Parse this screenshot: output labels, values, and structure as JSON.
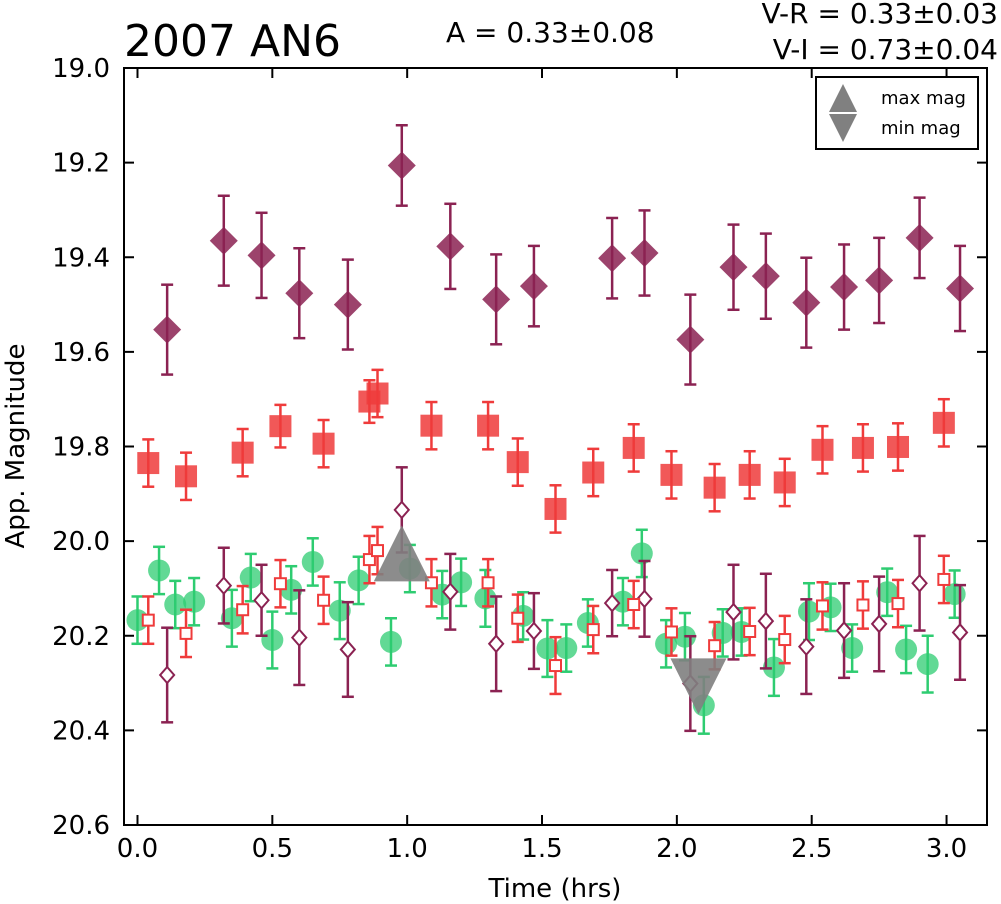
{
  "chart_data": {
    "type": "scatter",
    "title": "2007 AN6",
    "annotations": {
      "amplitude": "A  = 0.33±0.08",
      "v_r": "V-R = 0.33±0.03",
      "v_i": "V-I  = 0.73±0.04"
    },
    "xlabel": "Time (hrs)",
    "ylabel": "App. Magnitude",
    "xlim": [
      -0.05,
      3.15
    ],
    "ylim": [
      20.6,
      19.0
    ],
    "y_inverted": true,
    "xticks": [
      "0.0",
      "0.5",
      "1.0",
      "1.5",
      "2.0",
      "2.5",
      "3.0"
    ],
    "yticks": [
      "19.0",
      "19.2",
      "19.4",
      "19.6",
      "19.8",
      "20.0",
      "20.2",
      "20.4",
      "20.6"
    ],
    "grid": false,
    "legend": {
      "placement": "top-right",
      "entries": [
        {
          "label": "max mag",
          "marker": "triangle-up",
          "color": "#808080"
        },
        {
          "label": "min mag",
          "marker": "triangle-down",
          "color": "#808080"
        }
      ]
    },
    "series": [
      {
        "marker": "diamond-filled",
        "color": "#8B2252",
        "points": [
          [
            0.11,
            19.553,
            0.095
          ],
          [
            0.32,
            19.365,
            0.095
          ],
          [
            0.46,
            19.396,
            0.09
          ],
          [
            0.6,
            19.476,
            0.095
          ],
          [
            0.78,
            19.5,
            0.095
          ],
          [
            0.98,
            19.206,
            0.085
          ],
          [
            1.16,
            19.377,
            0.09
          ],
          [
            1.33,
            19.489,
            0.095
          ],
          [
            1.47,
            19.461,
            0.085
          ],
          [
            1.76,
            19.402,
            0.085
          ],
          [
            1.88,
            19.391,
            0.09
          ],
          [
            2.05,
            19.574,
            0.095
          ],
          [
            2.21,
            19.421,
            0.09
          ],
          [
            2.33,
            19.44,
            0.09
          ],
          [
            2.48,
            19.496,
            0.095
          ],
          [
            2.62,
            19.463,
            0.09
          ],
          [
            2.75,
            19.449,
            0.09
          ],
          [
            2.9,
            19.359,
            0.085
          ],
          [
            3.05,
            19.466,
            0.09
          ]
        ]
      },
      {
        "marker": "square-filled",
        "color": "#EF3B3B",
        "points": [
          [
            0.04,
            19.835,
            0.05
          ],
          [
            0.18,
            19.863,
            0.05
          ],
          [
            0.39,
            19.813,
            0.05
          ],
          [
            0.53,
            19.757,
            0.045
          ],
          [
            0.69,
            19.794,
            0.05
          ],
          [
            0.86,
            19.705,
            0.045
          ],
          [
            0.89,
            19.688,
            0.05
          ],
          [
            1.09,
            19.756,
            0.05
          ],
          [
            1.3,
            19.756,
            0.05
          ],
          [
            1.41,
            19.833,
            0.05
          ],
          [
            1.55,
            19.932,
            0.05
          ],
          [
            1.69,
            19.855,
            0.05
          ],
          [
            1.84,
            19.803,
            0.05
          ],
          [
            1.98,
            19.86,
            0.05
          ],
          [
            2.14,
            19.887,
            0.05
          ],
          [
            2.27,
            19.86,
            0.05
          ],
          [
            2.4,
            19.876,
            0.05
          ],
          [
            2.54,
            19.807,
            0.05
          ],
          [
            2.69,
            19.803,
            0.05
          ],
          [
            2.82,
            19.801,
            0.05
          ],
          [
            2.99,
            19.75,
            0.05
          ]
        ]
      },
      {
        "marker": "circle-filled",
        "color": "#2ECC71",
        "points": [
          [
            0.0,
            20.167,
            0.05
          ],
          [
            0.08,
            20.062,
            0.05
          ],
          [
            0.14,
            20.134,
            0.05
          ],
          [
            0.21,
            20.128,
            0.05
          ],
          [
            0.35,
            20.163,
            0.06
          ],
          [
            0.42,
            20.077,
            0.05
          ],
          [
            0.5,
            20.209,
            0.06
          ],
          [
            0.57,
            20.103,
            0.05
          ],
          [
            0.65,
            20.044,
            0.05
          ],
          [
            0.75,
            20.147,
            0.06
          ],
          [
            0.82,
            20.083,
            0.05
          ],
          [
            0.94,
            20.213,
            0.05
          ],
          [
            1.01,
            20.058,
            0.05
          ],
          [
            1.13,
            20.113,
            0.05
          ],
          [
            1.2,
            20.087,
            0.05
          ],
          [
            1.29,
            20.121,
            0.06
          ],
          [
            1.43,
            20.158,
            0.05
          ],
          [
            1.52,
            20.227,
            0.06
          ],
          [
            1.59,
            20.226,
            0.05
          ],
          [
            1.67,
            20.173,
            0.05
          ],
          [
            1.8,
            20.128,
            0.05
          ],
          [
            1.87,
            20.026,
            0.05
          ],
          [
            1.96,
            20.217,
            0.05
          ],
          [
            2.03,
            20.202,
            0.05
          ],
          [
            2.1,
            20.347,
            0.06
          ],
          [
            2.17,
            20.194,
            0.05
          ],
          [
            2.24,
            20.192,
            0.05
          ],
          [
            2.36,
            20.267,
            0.06
          ],
          [
            2.49,
            20.149,
            0.06
          ],
          [
            2.57,
            20.14,
            0.05
          ],
          [
            2.65,
            20.226,
            0.05
          ],
          [
            2.78,
            20.108,
            0.05
          ],
          [
            2.85,
            20.229,
            0.05
          ],
          [
            2.93,
            20.26,
            0.06
          ],
          [
            3.03,
            20.112,
            0.05
          ]
        ]
      },
      {
        "marker": "diamond-open",
        "color": "#8B2252",
        "points": [
          [
            0.11,
            20.283,
            0.1
          ],
          [
            0.32,
            20.094,
            0.08
          ],
          [
            0.46,
            20.125,
            0.075
          ],
          [
            0.6,
            20.204,
            0.1
          ],
          [
            0.78,
            20.229,
            0.1
          ],
          [
            0.98,
            19.934,
            0.09
          ],
          [
            1.16,
            20.107,
            0.08
          ],
          [
            1.33,
            20.217,
            0.1
          ],
          [
            1.47,
            20.19,
            0.08
          ],
          [
            1.76,
            20.131,
            0.07
          ],
          [
            1.88,
            20.122,
            0.08
          ],
          [
            2.05,
            20.301,
            0.1
          ],
          [
            2.21,
            20.15,
            0.1
          ],
          [
            2.33,
            20.169,
            0.1
          ],
          [
            2.48,
            20.223,
            0.1
          ],
          [
            2.62,
            20.189,
            0.1
          ],
          [
            2.75,
            20.175,
            0.1
          ],
          [
            2.9,
            20.089,
            0.1
          ],
          [
            3.05,
            20.193,
            0.1
          ]
        ]
      },
      {
        "marker": "square-open",
        "color": "#EF3B3B",
        "points": [
          [
            0.04,
            20.167,
            0.05
          ],
          [
            0.18,
            20.195,
            0.05
          ],
          [
            0.39,
            20.145,
            0.05
          ],
          [
            0.53,
            20.09,
            0.05
          ],
          [
            0.69,
            20.125,
            0.05
          ],
          [
            0.86,
            20.039,
            0.05
          ],
          [
            0.89,
            20.02,
            0.05
          ],
          [
            1.09,
            20.088,
            0.05
          ],
          [
            1.3,
            20.088,
            0.05
          ],
          [
            1.41,
            20.163,
            0.05
          ],
          [
            1.55,
            20.263,
            0.06
          ],
          [
            1.69,
            20.187,
            0.05
          ],
          [
            1.84,
            20.134,
            0.05
          ],
          [
            1.98,
            20.192,
            0.05
          ],
          [
            2.14,
            20.221,
            0.05
          ],
          [
            2.27,
            20.191,
            0.05
          ],
          [
            2.4,
            20.208,
            0.05
          ],
          [
            2.54,
            20.137,
            0.05
          ],
          [
            2.69,
            20.135,
            0.05
          ],
          [
            2.82,
            20.132,
            0.05
          ],
          [
            2.99,
            20.081,
            0.05
          ]
        ]
      }
    ],
    "markers": {
      "max": {
        "x": 0.98,
        "y": 20.026,
        "color": "#808080"
      },
      "min": {
        "x": 2.08,
        "y": 20.307,
        "color": "#808080"
      }
    }
  }
}
